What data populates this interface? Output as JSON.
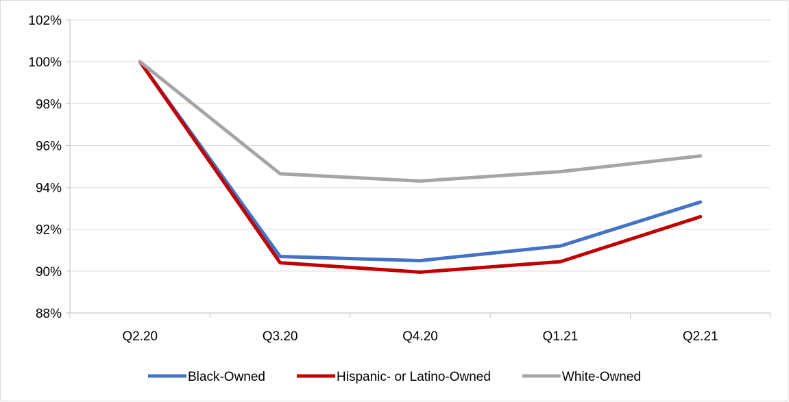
{
  "chart_data": {
    "type": "line",
    "title": "",
    "xlabel": "",
    "ylabel": "",
    "categories": [
      "Q2.20",
      "Q3.20",
      "Q4.20",
      "Q1.21",
      "Q2.21"
    ],
    "ylim": [
      88,
      102
    ],
    "yticks": [
      88,
      90,
      92,
      94,
      96,
      98,
      100,
      102
    ],
    "ytick_labels": [
      "88%",
      "90%",
      "92%",
      "94%",
      "96%",
      "98%",
      "100%",
      "102%"
    ],
    "grid": true,
    "legend_position": "bottom",
    "series": [
      {
        "name": "Black-Owned",
        "color": "#4472c4",
        "values": [
          100,
          90.7,
          90.5,
          91.2,
          93.3
        ]
      },
      {
        "name": "Hispanic- or Latino-Owned",
        "color": "#c00000",
        "values": [
          100,
          90.4,
          89.95,
          90.45,
          92.6
        ]
      },
      {
        "name": "White-Owned",
        "color": "#a5a5a5",
        "values": [
          100,
          94.65,
          94.3,
          94.75,
          95.5
        ]
      }
    ]
  }
}
